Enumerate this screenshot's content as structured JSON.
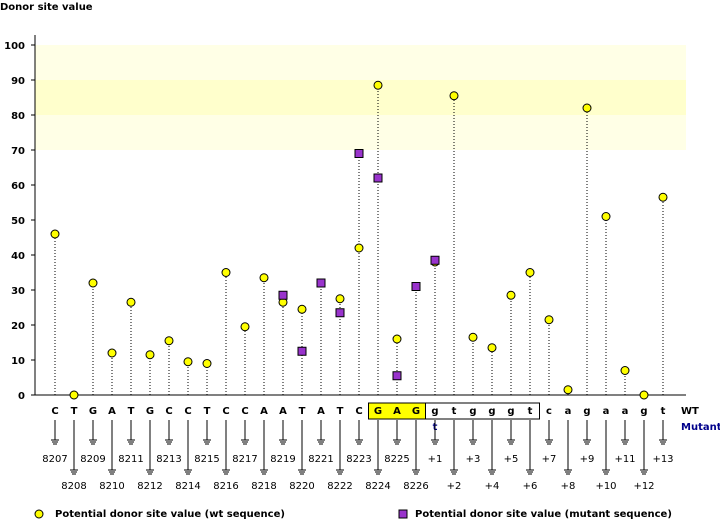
{
  "chart_data": {
    "type": "scatter",
    "title": "Donor site value",
    "ylim": [
      0,
      100
    ],
    "yticks": [
      0,
      10,
      20,
      30,
      40,
      50,
      60,
      70,
      80,
      90,
      100
    ],
    "grid": false,
    "wt_row_label": "WT",
    "mutant_row_label": "Mutant",
    "categories": [
      "C",
      "T",
      "G",
      "A",
      "T",
      "G",
      "C",
      "C",
      "T",
      "C",
      "C",
      "A",
      "A",
      "T",
      "A",
      "T",
      "C",
      "G",
      "A",
      "G",
      "g",
      "t",
      "g",
      "g",
      "g",
      "t",
      "c",
      "a",
      "g",
      "a",
      "a",
      "g",
      "t"
    ],
    "positions": [
      "8207",
      "8208",
      "8209",
      "8210",
      "8211",
      "8212",
      "8213",
      "8214",
      "8215",
      "8216",
      "8217",
      "8218",
      "8219",
      "8220",
      "8221",
      "8222",
      "8223",
      "8224",
      "8225",
      "8226",
      "+1",
      "+2",
      "+3",
      "+4",
      "+5",
      "+6",
      "+7",
      "+8",
      "+9",
      "+10",
      "+11",
      "+12",
      "+13"
    ],
    "mutant_bases": [
      null,
      null,
      null,
      null,
      null,
      null,
      null,
      null,
      null,
      null,
      null,
      null,
      null,
      null,
      null,
      null,
      null,
      null,
      null,
      null,
      "t",
      null,
      null,
      null,
      null,
      null,
      null,
      null,
      null,
      null,
      null,
      null,
      null
    ],
    "series": [
      {
        "name": "Potential donor site value (wt sequence)",
        "color": "#ffff00",
        "values": [
          46,
          0,
          32,
          12,
          26.5,
          11.5,
          15.5,
          9.5,
          9,
          35,
          19.5,
          33.5,
          26.5,
          24.5,
          32,
          27.5,
          42,
          88.5,
          16,
          31,
          38,
          85.5,
          16.5,
          13.5,
          28.5,
          35,
          21.5,
          1.5,
          82,
          51,
          7,
          0,
          56.5
        ]
      },
      {
        "name": "Potential donor site value (mutant sequence)",
        "color": "#9933cc",
        "values": [
          null,
          null,
          null,
          null,
          null,
          null,
          null,
          null,
          null,
          null,
          null,
          null,
          28.5,
          12.5,
          32,
          23.5,
          69,
          62,
          5.5,
          31,
          38.5,
          null,
          null,
          null,
          null,
          null,
          null,
          null,
          null,
          null,
          null,
          null,
          null
        ]
      }
    ],
    "highlight_bands": [
      {
        "from": 80,
        "to": 90,
        "color": "#ffffcc"
      },
      {
        "from": 70,
        "to": 80,
        "color": "#ffffe6"
      },
      {
        "from": 90,
        "to": 100,
        "color": "#ffffe6"
      }
    ],
    "boxed_bases": {
      "exon_fill": "#ffff00",
      "exon_indices": [
        17,
        18,
        19
      ],
      "intron_indices": [
        20,
        21,
        22,
        23,
        24,
        25
      ]
    },
    "legend_position": "bottom"
  }
}
